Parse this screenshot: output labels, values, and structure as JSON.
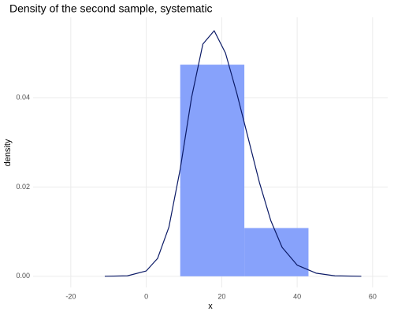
{
  "chart_data": {
    "type": "histogram",
    "title": "Density of the second sample, systematic",
    "xlabel": "x",
    "ylabel": "density",
    "bins": [
      9,
      26,
      43
    ],
    "values": [
      0.0474,
      0.0108
    ],
    "color": "#87a2fb",
    "line": {
      "x": [
        -11,
        -5,
        0,
        3,
        6,
        9,
        12,
        15,
        18,
        21,
        24,
        27,
        30,
        33,
        36,
        40,
        45,
        50,
        57
      ],
      "values": [
        0,
        0.0001,
        0.0012,
        0.004,
        0.011,
        0.024,
        0.04,
        0.052,
        0.055,
        0.05,
        0.041,
        0.031,
        0.021,
        0.0125,
        0.0065,
        0.0025,
        0.0007,
        0.0001,
        0
      ],
      "color": "#0b1a66"
    },
    "xlim": [
      -30,
      64
    ],
    "ylim": [
      -0.0025,
      0.058
    ],
    "xticks": [
      -20,
      0,
      20,
      40,
      60
    ],
    "yticks": [
      {
        "value": 0,
        "label": "0.00"
      },
      {
        "value": 0.02,
        "label": "0.02"
      },
      {
        "value": 0.04,
        "label": "0.04"
      }
    ],
    "grid": true
  }
}
